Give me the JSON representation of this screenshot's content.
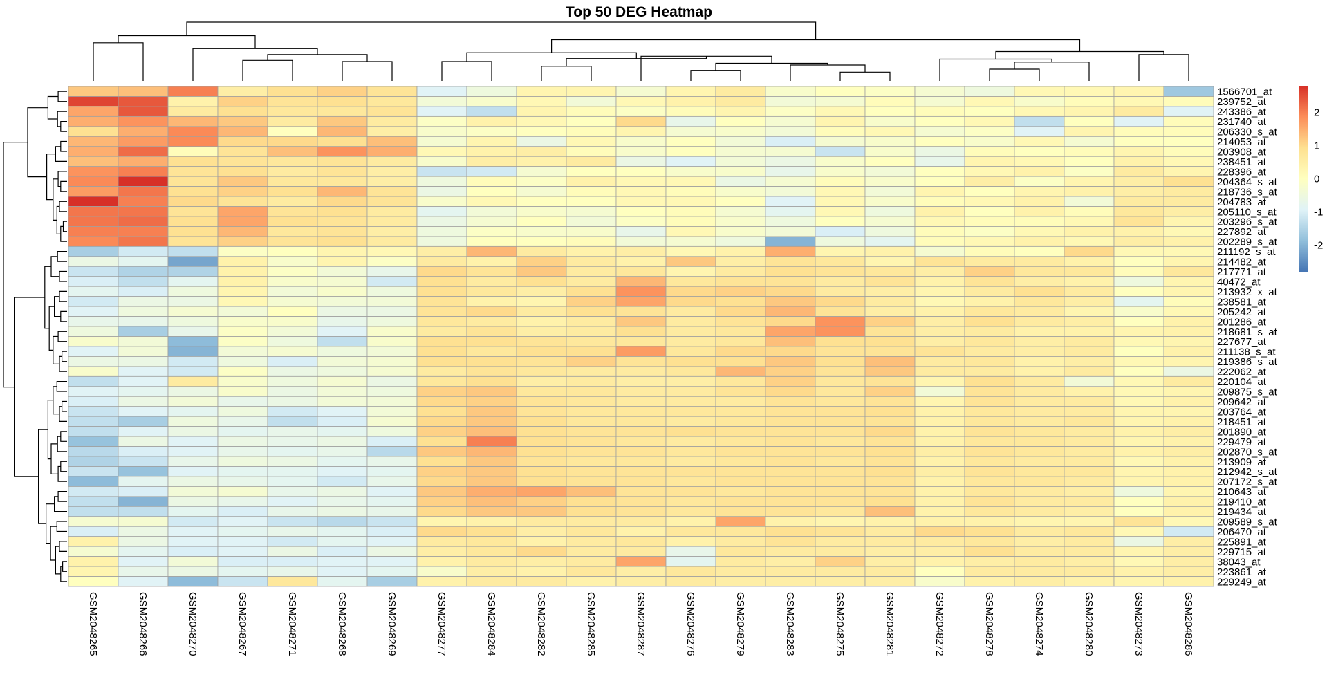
{
  "chart_data": {
    "type": "heatmap",
    "title": "Top 50 DEG Heatmap",
    "columns": [
      "GSM2048265",
      "GSM2048266",
      "GSM2048270",
      "GSM2048267",
      "GSM2048271",
      "GSM2048268",
      "GSM2048269",
      "GSM2048277",
      "GSM2048284",
      "GSM2048282",
      "GSM2048285",
      "GSM2048287",
      "GSM2048276",
      "GSM2048279",
      "GSM2048283",
      "GSM2048275",
      "GSM2048281",
      "GSM2048272",
      "GSM2048278",
      "GSM2048274",
      "GSM2048280",
      "GSM2048273",
      "GSM2048286"
    ],
    "rows": [
      "1566701_at",
      "239752_at",
      "243386_at",
      "231740_at",
      "206330_s_at",
      "214053_at",
      "203908_at",
      "238451_at",
      "228396_at",
      "204364_s_at",
      "218736_s_at",
      "204783_at",
      "205110_s_at",
      "203296_s_at",
      "227892_at",
      "202289_s_at",
      "211192_s_at",
      "214482_at",
      "217771_at",
      "40472_at",
      "213932_x_at",
      "238581_at",
      "205242_at",
      "201286_at",
      "218681_s_at",
      "227677_at",
      "211138_s_at",
      "219386_s_at",
      "222062_at",
      "220104_at",
      "209875_s_at",
      "209642_at",
      "203764_at",
      "218451_at",
      "201890_at",
      "229479_at",
      "202870_s_at",
      "213909_at",
      "212942_s_at",
      "207172_s_at",
      "210643_at",
      "219410_at",
      "219434_at",
      "209589_s_at",
      "206470_at",
      "225891_at",
      "229715_at",
      "38043_at",
      "223861_at",
      "229249_at"
    ],
    "values": [
      [
        1.2,
        1.3,
        2.0,
        0.5,
        0.9,
        1.1,
        0.8,
        -0.9,
        -0.5,
        0.3,
        0.3,
        -0.3,
        0.3,
        0.6,
        -0.2,
        0.0,
        -0.1,
        -0.3,
        -0.5,
        0.2,
        0.2,
        0.3,
        -1.7
      ],
      [
        2.6,
        2.4,
        0.4,
        1.1,
        0.8,
        0.9,
        0.7,
        -0.4,
        -0.2,
        0.2,
        -0.4,
        0.2,
        0.4,
        0.6,
        -0.4,
        -0.3,
        0.1,
        -0.3,
        0.2,
        -0.2,
        0.1,
        0.2,
        0.1
      ],
      [
        1.6,
        2.4,
        0.6,
        0.9,
        0.7,
        0.7,
        0.8,
        -0.9,
        -1.3,
        0.3,
        0.1,
        -0.1,
        0.1,
        0.3,
        -0.1,
        0.2,
        0.0,
        0.1,
        0.0,
        0.2,
        0.3,
        0.6,
        -0.9
      ],
      [
        1.5,
        1.8,
        1.4,
        1.2,
        0.6,
        1.2,
        0.6,
        -0.1,
        0.4,
        0.2,
        0.0,
        1.0,
        -0.7,
        0.0,
        -0.3,
        0.3,
        -0.2,
        0.0,
        0.2,
        -1.3,
        0.0,
        -0.9,
        0.1
      ],
      [
        0.9,
        1.5,
        1.9,
        1.4,
        0.0,
        1.4,
        0.5,
        -0.2,
        -0.1,
        0.0,
        0.1,
        0.3,
        -0.3,
        -0.2,
        -0.4,
        0.1,
        0.2,
        -0.3,
        -0.1,
        -0.9,
        0.3,
        0.1,
        0.1
      ],
      [
        1.4,
        1.7,
        1.9,
        1.0,
        1.0,
        0.9,
        1.3,
        -0.3,
        0.3,
        -0.6,
        0.2,
        -0.2,
        0.0,
        -0.4,
        -1.0,
        -0.3,
        -0.2,
        0.0,
        -0.2,
        0.2,
        -0.3,
        0.0,
        0.0
      ],
      [
        1.5,
        2.2,
        0.1,
        0.8,
        1.3,
        1.8,
        1.5,
        0.2,
        0.4,
        0.5,
        0.1,
        -0.2,
        0.0,
        -0.3,
        -0.3,
        -1.2,
        -0.2,
        -0.6,
        0.1,
        0.0,
        0.1,
        0.3,
        0.1
      ],
      [
        1.3,
        1.5,
        0.9,
        0.8,
        0.7,
        0.8,
        0.6,
        -0.2,
        0.5,
        0.4,
        0.6,
        -0.6,
        -0.9,
        -0.4,
        -0.6,
        -0.2,
        0.0,
        -0.7,
        0.3,
        0.2,
        0.0,
        0.4,
        0.2
      ],
      [
        1.8,
        2.0,
        0.8,
        0.9,
        0.6,
        0.8,
        0.5,
        -1.2,
        -1.1,
        -0.3,
        0.0,
        0.0,
        -0.2,
        -0.2,
        -0.7,
        -0.2,
        -0.4,
        0.0,
        0.2,
        0.4,
        -0.1,
        0.6,
        0.3
      ],
      [
        1.9,
        2.8,
        0.8,
        1.2,
        0.7,
        0.7,
        0.5,
        -0.5,
        0.1,
        -0.1,
        0.4,
        0.2,
        0.2,
        -0.6,
        -0.3,
        0.1,
        -0.2,
        0.0,
        0.5,
        -0.1,
        0.3,
        0.5,
        0.9
      ],
      [
        1.7,
        2.1,
        0.9,
        1.1,
        0.9,
        1.4,
        0.8,
        -0.6,
        0.0,
        -0.3,
        0.1,
        0.2,
        0.1,
        -0.2,
        -0.4,
        0.2,
        -0.4,
        0.3,
        0.0,
        0.3,
        0.4,
        0.5,
        0.6
      ],
      [
        2.8,
        2.0,
        1.0,
        0.8,
        0.6,
        1.0,
        0.8,
        -0.2,
        0.2,
        0.0,
        0.0,
        0.2,
        0.2,
        0.0,
        -0.9,
        0.2,
        -0.2,
        0.1,
        0.2,
        0.4,
        -0.4,
        0.6,
        0.6
      ],
      [
        2.1,
        2.1,
        0.8,
        1.6,
        0.8,
        0.9,
        0.6,
        -0.8,
        -0.4,
        -0.2,
        -0.3,
        0.0,
        0.1,
        -0.3,
        -0.8,
        0.2,
        -0.5,
        0.4,
        0.0,
        0.4,
        0.1,
        0.7,
        0.5
      ],
      [
        2.1,
        2.2,
        0.9,
        1.6,
        0.9,
        0.8,
        0.6,
        -0.6,
        -0.3,
        0.0,
        -0.4,
        -0.1,
        0.1,
        -0.2,
        -0.5,
        0.0,
        -0.3,
        0.2,
        0.1,
        0.1,
        0.2,
        0.8,
        0.3
      ],
      [
        2.0,
        2.0,
        0.9,
        1.4,
        0.7,
        0.8,
        0.5,
        -0.5,
        -0.1,
        -0.2,
        -0.2,
        -0.7,
        0.2,
        -0.2,
        -0.4,
        -1.0,
        -0.5,
        0.1,
        -0.1,
        0.2,
        0.4,
        0.4,
        0.2
      ],
      [
        1.9,
        2.1,
        0.8,
        1.1,
        0.8,
        0.9,
        0.6,
        -0.5,
        0.0,
        0.0,
        0.1,
        -0.4,
        -0.3,
        -0.5,
        -2.0,
        -0.5,
        -0.8,
        0.1,
        0.2,
        0.4,
        0.2,
        0.5,
        0.4
      ],
      [
        -1.6,
        -1.1,
        -1.3,
        -0.1,
        0.0,
        0.3,
        0.2,
        0.5,
        1.4,
        0.6,
        0.4,
        0.5,
        0.2,
        0.4,
        1.5,
        0.3,
        0.4,
        -0.3,
        0.1,
        0.0,
        1.0,
        0.2,
        0.2
      ],
      [
        -0.6,
        -0.8,
        -2.2,
        0.4,
        -0.2,
        0.3,
        -0.1,
        0.6,
        0.4,
        1.1,
        0.6,
        0.4,
        1.2,
        0.5,
        0.8,
        0.7,
        0.3,
        0.8,
        0.6,
        0.6,
        0.4,
        0.0,
        0.3
      ],
      [
        -1.2,
        -1.5,
        -1.5,
        0.4,
        -0.1,
        -0.4,
        -0.7,
        1.0,
        0.8,
        1.2,
        0.6,
        0.7,
        0.3,
        0.6,
        0.9,
        0.8,
        0.7,
        0.5,
        1.1,
        0.7,
        0.7,
        0.1,
        0.7
      ],
      [
        -1.0,
        -1.3,
        -0.8,
        0.4,
        -0.2,
        -0.3,
        -1.1,
        0.9,
        0.6,
        0.9,
        0.6,
        1.4,
        0.7,
        0.8,
        0.8,
        0.6,
        0.8,
        0.4,
        0.8,
        0.5,
        0.4,
        -0.5,
        0.3
      ],
      [
        -0.8,
        -1.0,
        -0.5,
        0.3,
        -0.4,
        -0.2,
        -0.5,
        0.9,
        0.7,
        0.5,
        0.9,
        1.8,
        1.0,
        1.1,
        1.0,
        0.6,
        0.5,
        0.3,
        0.6,
        0.9,
        0.6,
        0.0,
        0.3
      ],
      [
        -1.1,
        -0.6,
        -0.6,
        0.2,
        -0.3,
        -0.4,
        -0.4,
        0.8,
        0.4,
        0.3,
        1.1,
        1.6,
        1.0,
        0.9,
        1.2,
        1.0,
        0.6,
        0.2,
        0.4,
        0.7,
        0.5,
        -0.8,
        0.1
      ],
      [
        -0.9,
        -0.5,
        -0.3,
        -0.4,
        0.0,
        -0.6,
        -0.6,
        0.8,
        1.0,
        0.6,
        0.9,
        0.8,
        0.6,
        1.0,
        1.4,
        0.8,
        0.5,
        0.4,
        0.7,
        0.6,
        0.3,
        -0.2,
        0.2
      ],
      [
        -0.7,
        -0.7,
        -0.5,
        -0.2,
        -0.2,
        -0.7,
        -0.5,
        0.7,
        0.6,
        0.4,
        0.6,
        1.2,
        0.6,
        0.8,
        1.0,
        1.8,
        1.1,
        0.5,
        0.9,
        0.6,
        0.5,
        0.0,
        0.4
      ],
      [
        -0.5,
        -1.6,
        -0.7,
        -0.1,
        -0.4,
        -0.9,
        -0.2,
        0.6,
        0.8,
        0.5,
        0.6,
        0.9,
        0.6,
        0.7,
        1.6,
        1.8,
        0.8,
        0.5,
        0.6,
        0.4,
        0.4,
        0.3,
        0.4
      ],
      [
        -0.2,
        -0.4,
        -1.9,
        -0.1,
        -0.5,
        -1.3,
        -0.2,
        0.9,
        0.9,
        0.8,
        0.7,
        0.7,
        0.6,
        0.7,
        1.3,
        0.9,
        0.9,
        0.5,
        0.7,
        0.5,
        0.6,
        0.2,
        0.3
      ],
      [
        -0.9,
        -0.4,
        -2.0,
        -0.4,
        -0.3,
        -0.5,
        -0.4,
        0.9,
        0.7,
        0.9,
        0.9,
        1.7,
        0.7,
        1.0,
        1.0,
        0.8,
        0.8,
        0.8,
        0.6,
        0.5,
        0.6,
        0.0,
        0.4
      ],
      [
        -0.6,
        -0.6,
        -1.1,
        -0.5,
        -1.0,
        -0.4,
        -0.3,
        0.9,
        0.9,
        0.8,
        1.1,
        0.8,
        0.9,
        0.9,
        1.2,
        0.9,
        1.3,
        0.6,
        0.7,
        0.4,
        0.5,
        0.2,
        0.3
      ],
      [
        -0.2,
        -0.9,
        -1.1,
        -0.1,
        -0.6,
        -0.5,
        -0.3,
        0.6,
        0.8,
        0.7,
        0.6,
        0.6,
        0.7,
        1.4,
        1.1,
        0.8,
        1.2,
        0.6,
        0.6,
        0.4,
        0.6,
        0.0,
        -0.6
      ],
      [
        -1.3,
        -0.9,
        0.6,
        -0.2,
        -0.5,
        -0.3,
        -0.6,
        0.7,
        0.9,
        0.5,
        0.6,
        0.5,
        0.5,
        0.7,
        1.1,
        0.7,
        0.8,
        0.3,
        0.9,
        0.6,
        -0.4,
        0.2,
        0.6
      ],
      [
        -0.9,
        -0.8,
        -0.6,
        -0.2,
        -0.6,
        -0.4,
        -0.5,
        1.1,
        1.2,
        0.7,
        0.7,
        0.6,
        0.6,
        0.8,
        1.0,
        0.7,
        1.1,
        -0.4,
        0.8,
        0.6,
        0.4,
        0.2,
        0.3
      ],
      [
        -1.0,
        -0.6,
        -0.4,
        -0.7,
        -0.6,
        -0.4,
        -0.4,
        1.0,
        1.1,
        0.8,
        0.7,
        0.6,
        0.6,
        0.6,
        0.8,
        0.7,
        0.8,
        0.3,
        0.8,
        0.6,
        0.6,
        0.2,
        0.4
      ],
      [
        -1.2,
        -0.9,
        -0.8,
        -0.5,
        -1.1,
        -0.9,
        -0.4,
        0.9,
        1.2,
        0.8,
        0.7,
        0.7,
        0.7,
        0.7,
        0.8,
        0.8,
        0.9,
        0.4,
        0.7,
        0.6,
        0.6,
        0.3,
        0.3
      ],
      [
        -1.3,
        -1.6,
        -0.5,
        -0.7,
        -1.3,
        -1.0,
        -0.3,
        1.0,
        1.2,
        0.9,
        0.7,
        0.7,
        0.6,
        0.7,
        0.8,
        0.8,
        0.8,
        0.4,
        0.7,
        0.6,
        0.7,
        0.3,
        0.4
      ],
      [
        -1.3,
        -0.9,
        -0.6,
        -0.8,
        -0.7,
        -0.8,
        -0.5,
        1.1,
        1.3,
        0.9,
        0.8,
        0.8,
        0.9,
        0.8,
        0.8,
        0.8,
        1.0,
        0.4,
        0.8,
        0.7,
        0.6,
        0.4,
        0.5
      ],
      [
        -1.8,
        -0.6,
        -0.9,
        -0.6,
        -0.7,
        -0.6,
        -1.0,
        0.9,
        2.0,
        0.9,
        0.8,
        0.7,
        0.6,
        0.7,
        0.8,
        0.7,
        0.8,
        0.4,
        0.7,
        0.7,
        0.6,
        0.3,
        0.4
      ],
      [
        -1.4,
        -1.0,
        -0.9,
        -0.7,
        -0.8,
        -0.7,
        -1.4,
        1.2,
        1.4,
        0.9,
        0.8,
        0.8,
        0.7,
        0.8,
        0.8,
        0.8,
        0.9,
        0.5,
        0.8,
        0.7,
        0.6,
        0.4,
        0.5
      ],
      [
        -1.5,
        -1.2,
        -0.7,
        -0.5,
        -0.6,
        -0.8,
        -0.7,
        0.9,
        1.2,
        0.8,
        0.7,
        0.7,
        0.6,
        0.7,
        0.8,
        0.7,
        0.8,
        0.4,
        0.7,
        0.6,
        0.6,
        0.2,
        0.4
      ],
      [
        -1.2,
        -1.8,
        -0.9,
        -0.8,
        -0.8,
        -0.9,
        -0.8,
        1.1,
        1.2,
        0.9,
        0.8,
        0.8,
        0.8,
        0.8,
        0.8,
        0.8,
        0.9,
        0.5,
        0.8,
        0.7,
        0.7,
        0.3,
        0.4
      ],
      [
        -1.9,
        -0.8,
        -0.6,
        -0.7,
        -0.8,
        -1.1,
        -0.7,
        1.0,
        1.2,
        0.9,
        0.8,
        0.8,
        0.7,
        0.8,
        0.8,
        0.8,
        0.8,
        0.4,
        0.7,
        0.7,
        0.6,
        0.3,
        0.4
      ],
      [
        -1.1,
        -1.0,
        -0.4,
        -0.3,
        -0.7,
        -0.6,
        -0.9,
        1.2,
        1.5,
        1.6,
        1.3,
        0.8,
        0.8,
        0.7,
        0.8,
        0.8,
        0.8,
        0.4,
        0.7,
        0.6,
        0.5,
        -0.5,
        0.3
      ],
      [
        -1.3,
        -2.0,
        -0.6,
        -0.7,
        -0.9,
        -0.7,
        -0.8,
        1.1,
        1.3,
        1.1,
        0.9,
        0.8,
        0.7,
        0.8,
        0.8,
        0.8,
        0.9,
        0.4,
        0.8,
        0.6,
        0.6,
        0.0,
        0.4
      ],
      [
        -1.3,
        -1.3,
        -0.8,
        -1.0,
        -0.7,
        -0.6,
        -0.7,
        1.0,
        1.2,
        1.2,
        0.9,
        0.8,
        0.7,
        0.8,
        0.8,
        0.7,
        1.3,
        0.4,
        0.7,
        0.6,
        0.5,
        0.0,
        0.4
      ],
      [
        -0.3,
        -0.3,
        -1.1,
        -0.9,
        -1.2,
        -1.4,
        -1.2,
        0.3,
        0.4,
        0.6,
        0.6,
        0.6,
        0.4,
        1.6,
        0.4,
        0.3,
        0.4,
        0.4,
        0.4,
        0.3,
        0.3,
        0.8,
        0.2
      ],
      [
        -1.0,
        -0.6,
        -0.9,
        -0.8,
        -0.7,
        -0.8,
        -1.0,
        1.0,
        0.9,
        0.5,
        0.7,
        0.4,
        0.7,
        0.7,
        0.9,
        0.8,
        0.6,
        1.0,
        0.9,
        0.6,
        0.7,
        0.2,
        -1.1
      ],
      [
        0.4,
        -0.6,
        -0.9,
        -0.9,
        -1.1,
        -0.8,
        -0.9,
        0.6,
        0.7,
        0.4,
        0.6,
        0.7,
        0.4,
        0.6,
        0.8,
        0.6,
        0.6,
        0.6,
        0.7,
        0.5,
        0.6,
        -0.6,
        0.5
      ],
      [
        -0.3,
        -0.8,
        -1.0,
        -0.9,
        -0.6,
        -1.0,
        -0.6,
        0.5,
        0.7,
        1.0,
        0.6,
        0.6,
        -0.7,
        0.7,
        0.6,
        0.6,
        0.5,
        0.5,
        0.9,
        0.6,
        0.6,
        0.3,
        0.5
      ],
      [
        0.4,
        -0.9,
        -0.4,
        -1.0,
        -1.0,
        -0.9,
        -0.9,
        0.4,
        0.6,
        0.5,
        0.6,
        1.6,
        -0.8,
        0.6,
        0.5,
        1.1,
        0.5,
        0.4,
        0.5,
        0.6,
        0.5,
        0.2,
        0.5
      ],
      [
        0.3,
        -0.7,
        -0.6,
        -0.8,
        -0.7,
        -0.9,
        -0.8,
        -0.2,
        0.5,
        0.4,
        0.7,
        0.5,
        0.7,
        0.6,
        0.6,
        0.6,
        0.6,
        0.0,
        0.6,
        0.6,
        0.6,
        0.4,
        0.5
      ],
      [
        0.0,
        -0.9,
        -1.9,
        -1.2,
        0.7,
        -0.8,
        -1.6,
        0.4,
        0.6,
        0.6,
        0.4,
        0.5,
        0.6,
        0.5,
        0.5,
        0.5,
        0.5,
        -0.2,
        0.4,
        0.5,
        0.4,
        0.3,
        0.4
      ]
    ],
    "legend": {
      "ticks": [
        "2",
        "1",
        "0",
        "-1",
        "-2"
      ],
      "tick_values": [
        2,
        1,
        0,
        -1,
        -2
      ],
      "range": [
        -2.8,
        2.8
      ],
      "colors": [
        "#4575B4",
        "#91BFDB",
        "#E0F3F8",
        "#FFFFBF",
        "#FEE090",
        "#FC8D59",
        "#D73027"
      ]
    },
    "cell_border_color": "#A0A0A0",
    "dendrogram_color": "#000000"
  }
}
